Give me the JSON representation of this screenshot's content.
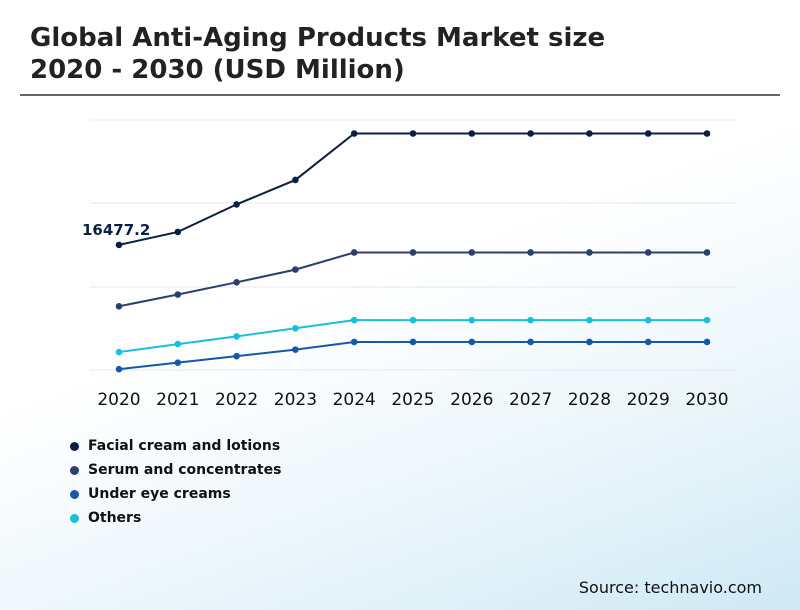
{
  "title_lines": [
    "Global Anti-Aging Products Market size",
    "2020 - 2030 (USD Million)"
  ],
  "source": "Source: technavio.com",
  "colors": {
    "Facial cream and lotions": "#0b1f45",
    "Serum and concentrates": "#2b3f6c",
    "Under eye creams": "#1558a8",
    "Others": "#1bbde0"
  },
  "chart_data": {
    "type": "line",
    "x": [
      "2020",
      "2021",
      "2022",
      "2023",
      "2024",
      "2025",
      "2026",
      "2027",
      "2028",
      "2029",
      "2030"
    ],
    "series": [
      {
        "name": "Facial cream and lotions",
        "values": [
          16477.2,
          17270,
          18960,
          20460,
          23310,
          23310,
          23310,
          23310,
          23310,
          23310,
          23310
        ]
      },
      {
        "name": "Serum and concentrates",
        "values": [
          12710,
          13430,
          14180,
          14960,
          16010,
          16010,
          16010,
          16010,
          16010,
          16010,
          16010
        ]
      },
      {
        "name": "Under eye creams",
        "values": [
          8850,
          9250,
          9650,
          10050,
          10520,
          10520,
          10520,
          10520,
          10520,
          10520,
          10520
        ]
      },
      {
        "name": "Others",
        "values": [
          9900,
          10390,
          10860,
          11360,
          11860,
          11860,
          11860,
          11860,
          11860,
          11860,
          11860
        ]
      }
    ],
    "annotations": [
      {
        "series": "Facial cream and lotions",
        "x": "2020",
        "label": "16477.2"
      }
    ],
    "ylim": [
      8800,
      24200
    ],
    "grid": true,
    "legend": "bottom-left"
  }
}
